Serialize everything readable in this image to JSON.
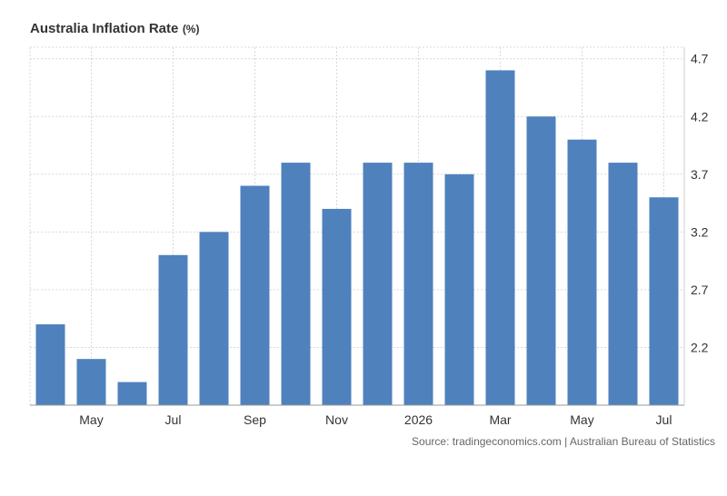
{
  "chart_title": "Australia Inflation Rate",
  "chart_title_unit": "(%)",
  "source": "Source: tradingeconomics.com | Australian Bureau of Statistics",
  "colors": {
    "bar": "#4f81bd",
    "grid": "#d9d9d9",
    "axis_text": "#333333"
  },
  "chart_data": {
    "type": "bar",
    "title": "Australia Inflation Rate",
    "unit": "(%)",
    "categories": [
      "",
      "May",
      "",
      "Jul",
      "",
      "Sep",
      "",
      "Nov",
      "",
      "2026",
      "",
      "Mar",
      "",
      "May",
      "",
      "Jul"
    ],
    "values": [
      2.4,
      2.1,
      1.9,
      3.0,
      3.2,
      3.6,
      3.8,
      3.4,
      3.8,
      3.8,
      3.7,
      4.6,
      4.2,
      4.0,
      3.8,
      3.5
    ],
    "x_tick_labels": [
      "May",
      "Jul",
      "Sep",
      "Nov",
      "2026",
      "Mar",
      "May",
      "Jul"
    ],
    "y_ticks": [
      2.2,
      2.7,
      3.2,
      3.7,
      4.2,
      4.7
    ],
    "y_axis_position": "right",
    "grid": true,
    "legend": "none"
  }
}
